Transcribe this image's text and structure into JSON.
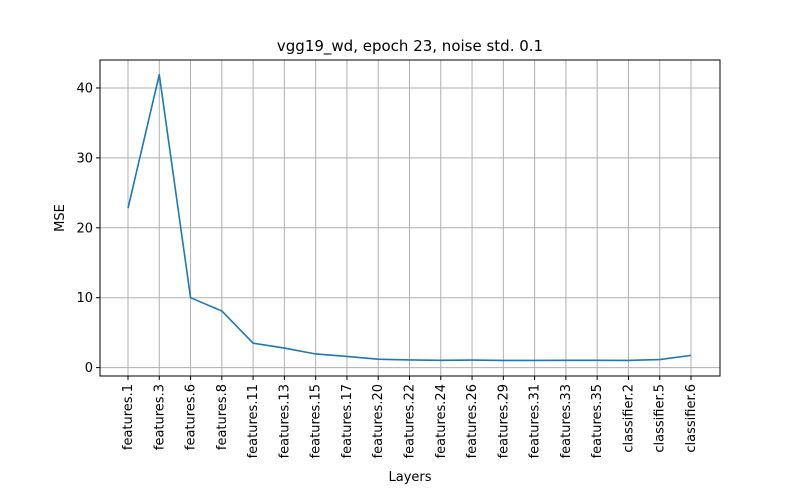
{
  "chart_data": {
    "type": "line",
    "title": "vgg19_wd, epoch 23, noise std. 0.1",
    "xlabel": "Layers",
    "ylabel": "MSE",
    "categories": [
      "features.1",
      "features.3",
      "features.6",
      "features.8",
      "features.11",
      "features.13",
      "features.15",
      "features.17",
      "features.20",
      "features.22",
      "features.24",
      "features.26",
      "features.29",
      "features.31",
      "features.33",
      "features.35",
      "classifier.2",
      "classifier.5",
      "classifier.6"
    ],
    "series": [
      {
        "values": [
          22.8,
          41.9,
          10.0,
          8.1,
          3.5,
          2.8,
          1.95,
          1.6,
          1.2,
          1.1,
          1.05,
          1.08,
          1.02,
          1.03,
          1.05,
          1.04,
          1.03,
          1.15,
          1.75
        ]
      }
    ],
    "ylim": [
      -1.2,
      44.0
    ],
    "yticks": [
      "0",
      "10",
      "20",
      "30",
      "40"
    ],
    "grid": true,
    "line_color": "#1f77b4"
  }
}
